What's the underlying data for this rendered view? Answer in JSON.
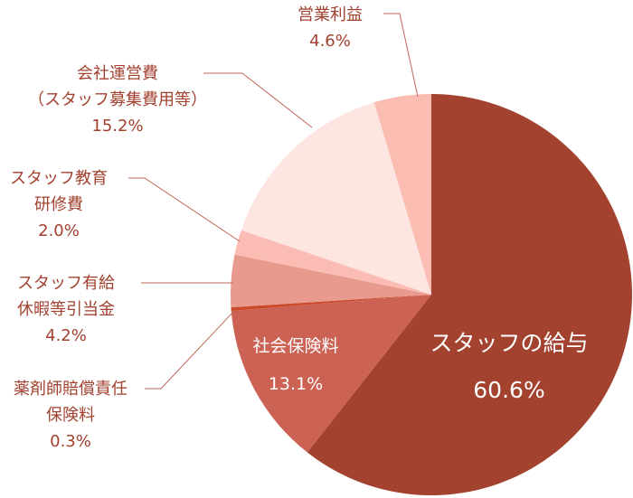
{
  "chart_data": {
    "type": "pie",
    "start_angle_deg": 0,
    "direction": "clockwise",
    "slices": [
      {
        "label": "スタッフの給与",
        "value": 60.6,
        "value_text": "60.6%",
        "color": "#a3422f"
      },
      {
        "label": "社会保険料",
        "value": 13.1,
        "value_text": "13.1%",
        "color": "#cc6253"
      },
      {
        "label": "薬剤師賠償責任保険料",
        "value": 0.3,
        "value_text": "0.3%",
        "color": "#cc4a2c"
      },
      {
        "label": "スタッフ有給休暇等引当金",
        "value": 4.2,
        "value_text": "4.2%",
        "color": "#e89a8e"
      },
      {
        "label": "スタッフ教育研修費",
        "value": 2.0,
        "value_text": "2.0%",
        "color": "#fbbcb3"
      },
      {
        "label": "会社運営費（スタッフ募集費用等）",
        "value": 15.2,
        "value_text": "15.2%",
        "color": "#fde5e1"
      },
      {
        "label": "営業利益",
        "value": 4.6,
        "value_text": "4.6%",
        "color": "#fbbdb2"
      }
    ]
  },
  "labels": {
    "salary": {
      "lines": [
        "スタッフの給与"
      ],
      "value": "60.6%"
    },
    "social_insurance": {
      "lines": [
        "社会保険料"
      ],
      "value": "13.1%"
    },
    "liability_insurance": {
      "lines": [
        "薬剤師賠償責任",
        "保険料"
      ],
      "value": "0.3%"
    },
    "paid_leave": {
      "lines": [
        "スタッフ有給",
        "休暇等引当金"
      ],
      "value": "4.2%"
    },
    "training": {
      "lines": [
        "スタッフ教育",
        "研修費"
      ],
      "value": "2.0%"
    },
    "operations": {
      "lines": [
        "会社運営費",
        "（スタッフ募集費用等）"
      ],
      "value": "15.2%"
    },
    "operating_profit": {
      "lines": [
        "営業利益"
      ],
      "value": "4.6%"
    }
  },
  "colors": {
    "label_text": "#a2412f",
    "leader_line": "#c0655a"
  }
}
